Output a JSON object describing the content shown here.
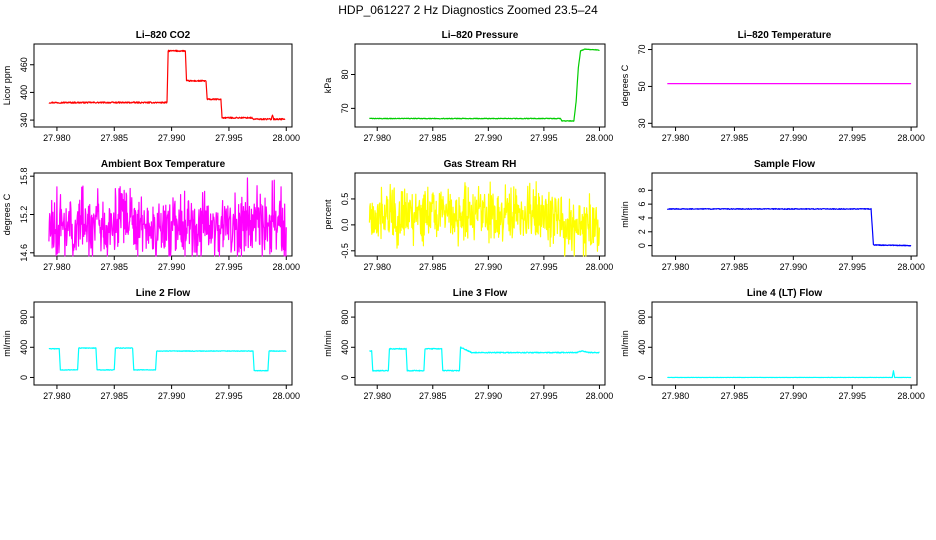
{
  "title": "HDP_061227  2 Hz Diagnostics Zoomed 23.5–24",
  "chart_data": [
    {
      "type": "line",
      "title": "Li–820 CO2",
      "ylabel": "Licor ppm",
      "color": "#ff0000",
      "xlim": [
        27.978,
        28.0005
      ],
      "xticks": [
        27.98,
        27.985,
        27.99,
        27.995,
        28.0
      ],
      "xtick_labels": [
        "27.980",
        "27.985",
        "27.990",
        "27.995",
        "28.000"
      ],
      "ylim": [
        325,
        505
      ],
      "yticks": [
        340,
        400,
        460
      ],
      "ytick_labels": [
        "340",
        "400",
        "460"
      ],
      "noise": 1.5,
      "segments": [
        [
          27.9793,
          378
        ],
        [
          27.9896,
          378
        ],
        [
          27.9897,
          490
        ],
        [
          27.9912,
          490
        ],
        [
          27.9913,
          425
        ],
        [
          27.993,
          425
        ],
        [
          27.9931,
          385
        ],
        [
          27.9943,
          385
        ],
        [
          27.9944,
          345
        ],
        [
          27.997,
          345
        ],
        [
          27.9971,
          342
        ],
        [
          27.9987,
          342
        ],
        [
          27.9988,
          352
        ],
        [
          27.9989,
          342
        ],
        [
          27.9999,
          342
        ]
      ]
    },
    {
      "type": "line",
      "title": "Li–820 Pressure",
      "ylabel": "kPa",
      "color": "#00cd00",
      "xlim": [
        27.978,
        28.0005
      ],
      "xticks": [
        27.98,
        27.985,
        27.99,
        27.995,
        28.0
      ],
      "xtick_labels": [
        "27.980",
        "27.985",
        "27.990",
        "27.995",
        "28.000"
      ],
      "ylim": [
        64.5,
        89
      ],
      "yticks": [
        70,
        80
      ],
      "ytick_labels": [
        "70",
        "80"
      ],
      "noise": 0.1,
      "segments": [
        [
          27.9793,
          67.0
        ],
        [
          27.9965,
          67.0
        ],
        [
          27.9966,
          66.3
        ],
        [
          27.9977,
          66.3
        ],
        [
          27.9979,
          72
        ],
        [
          27.9981,
          82
        ],
        [
          27.9983,
          87
        ],
        [
          27.9987,
          87.5
        ],
        [
          28.0,
          87.2
        ]
      ]
    },
    {
      "type": "line",
      "title": "Li–820 Temperature",
      "ylabel": "degrees C",
      "color": "#ff00ff",
      "xlim": [
        27.978,
        28.0005
      ],
      "xticks": [
        27.98,
        27.985,
        27.99,
        27.995,
        28.0
      ],
      "xtick_labels": [
        "27.980",
        "27.985",
        "27.990",
        "27.995",
        "28.000"
      ],
      "ylim": [
        28,
        73
      ],
      "yticks": [
        30,
        50,
        70
      ],
      "ytick_labels": [
        "30",
        "50",
        "70"
      ],
      "noise": 0,
      "segments": [
        [
          27.9793,
          51.5
        ],
        [
          28.0,
          51.5
        ]
      ]
    },
    {
      "type": "line",
      "title": "Ambient Box Temperature",
      "ylabel": "degrees C",
      "color": "#ff00ff",
      "xlim": [
        27.978,
        28.0005
      ],
      "xticks": [
        27.98,
        27.985,
        27.99,
        27.995,
        28.0
      ],
      "xtick_labels": [
        "27.980",
        "27.985",
        "27.990",
        "27.995",
        "28.000"
      ],
      "ylim": [
        14.55,
        15.85
      ],
      "yticks": [
        14.6,
        15.2,
        15.8
      ],
      "ytick_labels": [
        "14.6",
        "15.2",
        "15.8"
      ],
      "noise": 0.1,
      "spikes": 0.38,
      "seed": 11,
      "segments": [
        [
          27.9793,
          15.0
        ],
        [
          28.0,
          15.0
        ]
      ]
    },
    {
      "type": "line",
      "title": "Gas Stream RH",
      "ylabel": "percent",
      "color": "#ffff00",
      "xlim": [
        27.978,
        28.0005
      ],
      "xticks": [
        27.98,
        27.985,
        27.99,
        27.995,
        28.0
      ],
      "xtick_labels": [
        "27.980",
        "27.985",
        "27.990",
        "27.995",
        "28.000"
      ],
      "ylim": [
        -0.6,
        1.0
      ],
      "yticks": [
        -0.5,
        0,
        0.5
      ],
      "ytick_labels": [
        "-0.5",
        "0.0",
        "0.5"
      ],
      "noise": 0.12,
      "spikes": 0.35,
      "seed": 23,
      "segments": [
        [
          27.9793,
          0.2
        ],
        [
          27.9965,
          0.2
        ],
        [
          27.9968,
          -0.05
        ],
        [
          28.0,
          -0.05
        ]
      ]
    },
    {
      "type": "line",
      "title": "Sample Flow",
      "ylabel": "ml/min",
      "color": "#0000ff",
      "xlim": [
        27.978,
        28.0005
      ],
      "xticks": [
        27.98,
        27.985,
        27.99,
        27.995,
        28.0
      ],
      "xtick_labels": [
        "27.980",
        "27.985",
        "27.990",
        "27.995",
        "28.000"
      ],
      "ylim": [
        -1.5,
        10.5
      ],
      "yticks": [
        0,
        2,
        4,
        6,
        8
      ],
      "ytick_labels": [
        "0",
        "2",
        "4",
        "6",
        "8"
      ],
      "noise": 0.06,
      "segments": [
        [
          27.9793,
          5.3
        ],
        [
          27.9966,
          5.3
        ],
        [
          27.9968,
          0.1
        ],
        [
          28.0,
          0.0
        ]
      ]
    },
    {
      "type": "line",
      "title": "Line 2 Flow",
      "ylabel": "ml/min",
      "color": "#00ffff",
      "xlim": [
        27.978,
        28.0005
      ],
      "xticks": [
        27.98,
        27.985,
        27.99,
        27.995,
        28.0
      ],
      "xtick_labels": [
        "27.980",
        "27.985",
        "27.990",
        "27.995",
        "28.000"
      ],
      "ylim": [
        -100,
        1000
      ],
      "yticks": [
        0,
        400,
        800
      ],
      "ytick_labels": [
        "0",
        "400",
        "800"
      ],
      "noise": 4,
      "segments": [
        [
          27.9793,
          380
        ],
        [
          27.9802,
          380
        ],
        [
          27.9803,
          100
        ],
        [
          27.9818,
          100
        ],
        [
          27.9819,
          390
        ],
        [
          27.9834,
          390
        ],
        [
          27.9835,
          100
        ],
        [
          27.985,
          100
        ],
        [
          27.9851,
          390
        ],
        [
          27.9866,
          390
        ],
        [
          27.9867,
          100
        ],
        [
          27.9886,
          100
        ],
        [
          27.9887,
          350
        ],
        [
          27.9971,
          350
        ],
        [
          27.9972,
          90
        ],
        [
          27.9984,
          90
        ],
        [
          27.9985,
          350
        ],
        [
          28.0,
          350
        ]
      ]
    },
    {
      "type": "line",
      "title": "Line 3 Flow",
      "ylabel": "ml/min",
      "color": "#00ffff",
      "xlim": [
        27.978,
        28.0005
      ],
      "xticks": [
        27.98,
        27.985,
        27.99,
        27.995,
        28.0
      ],
      "xtick_labels": [
        "27.980",
        "27.985",
        "27.990",
        "27.995",
        "28.000"
      ],
      "ylim": [
        -100,
        1000
      ],
      "yticks": [
        0,
        400,
        800
      ],
      "ytick_labels": [
        "0",
        "400",
        "800"
      ],
      "noise": 6,
      "segments": [
        [
          27.9793,
          350
        ],
        [
          27.9795,
          350
        ],
        [
          27.9796,
          90
        ],
        [
          27.981,
          90
        ],
        [
          27.9811,
          380
        ],
        [
          27.9826,
          380
        ],
        [
          27.9827,
          90
        ],
        [
          27.9842,
          90
        ],
        [
          27.9843,
          380
        ],
        [
          27.9858,
          380
        ],
        [
          27.9859,
          90
        ],
        [
          27.9874,
          90
        ],
        [
          27.9875,
          400
        ],
        [
          27.9885,
          330
        ],
        [
          27.998,
          330
        ],
        [
          27.9981,
          340
        ],
        [
          27.9985,
          350
        ],
        [
          27.999,
          330
        ],
        [
          28.0,
          330
        ]
      ]
    },
    {
      "type": "line",
      "title": "Line 4 (LT) Flow",
      "ylabel": "ml/min",
      "color": "#00ffff",
      "xlim": [
        27.978,
        28.0005
      ],
      "xticks": [
        27.98,
        27.985,
        27.99,
        27.995,
        28.0
      ],
      "xtick_labels": [
        "27.980",
        "27.985",
        "27.990",
        "27.995",
        "28.000"
      ],
      "ylim": [
        -100,
        1000
      ],
      "yticks": [
        0,
        400,
        800
      ],
      "ytick_labels": [
        "0",
        "400",
        "800"
      ],
      "noise": 1,
      "segments": [
        [
          27.9793,
          0
        ],
        [
          27.9984,
          0
        ],
        [
          27.9985,
          90
        ],
        [
          27.9986,
          0
        ],
        [
          28.0,
          0
        ]
      ]
    }
  ]
}
